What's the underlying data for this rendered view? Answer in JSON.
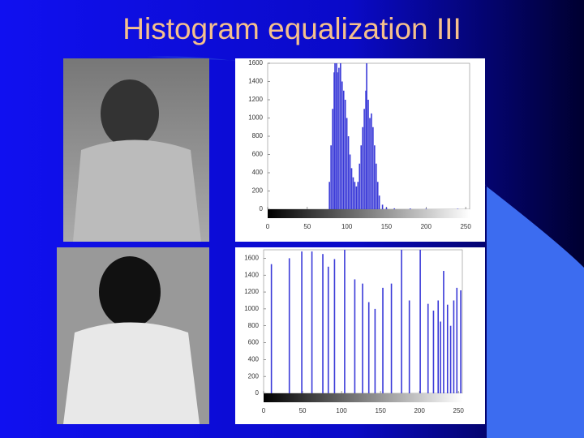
{
  "title": "Histogram equalization III",
  "chart_data": [
    {
      "type": "histogram",
      "x": [
        78,
        80,
        82,
        84,
        85,
        87,
        88,
        90,
        92,
        94,
        96,
        98,
        100,
        102,
        104,
        106,
        108,
        110,
        112,
        114,
        116,
        118,
        120,
        122,
        124,
        125,
        127,
        129,
        131,
        133,
        135,
        137,
        139,
        141,
        145,
        150,
        160,
        180,
        200,
        240
      ],
      "values": [
        300,
        700,
        1100,
        1500,
        1600,
        1600,
        1500,
        1550,
        1600,
        1400,
        1300,
        1200,
        1000,
        800,
        600,
        450,
        350,
        300,
        250,
        300,
        500,
        700,
        900,
        1100,
        1300,
        1600,
        1200,
        1000,
        1050,
        900,
        700,
        500,
        300,
        150,
        50,
        20,
        10,
        8,
        5,
        5
      ],
      "color": "#3a3ad8",
      "xlim": [
        0,
        255
      ],
      "ylim": [
        0,
        1600
      ],
      "xticks": [
        0,
        50,
        100,
        150,
        200,
        250
      ],
      "yticks": [
        0,
        200,
        400,
        600,
        800,
        1000,
        1200,
        1400,
        1600
      ]
    },
    {
      "type": "histogram",
      "x": [
        10,
        33,
        49,
        62,
        76,
        83,
        91,
        104,
        117,
        127,
        135,
        143,
        153,
        164,
        177,
        187,
        201,
        211,
        218,
        224,
        227,
        231,
        236,
        240,
        244,
        248,
        253
      ],
      "values": [
        1530,
        1600,
        1680,
        1680,
        1650,
        1500,
        1590,
        1700,
        1350,
        1300,
        1080,
        1000,
        1250,
        1300,
        1700,
        1100,
        1700,
        1060,
        980,
        1100,
        850,
        1450,
        1050,
        800,
        1100,
        1250,
        1220
      ],
      "color": "#3a3ad8",
      "xlim": [
        0,
        255
      ],
      "ylim": [
        0,
        1700
      ],
      "xticks": [
        0,
        50,
        100,
        150,
        200,
        250
      ],
      "yticks": [
        0,
        200,
        400,
        600,
        800,
        1000,
        1200,
        1400,
        1600
      ]
    }
  ]
}
